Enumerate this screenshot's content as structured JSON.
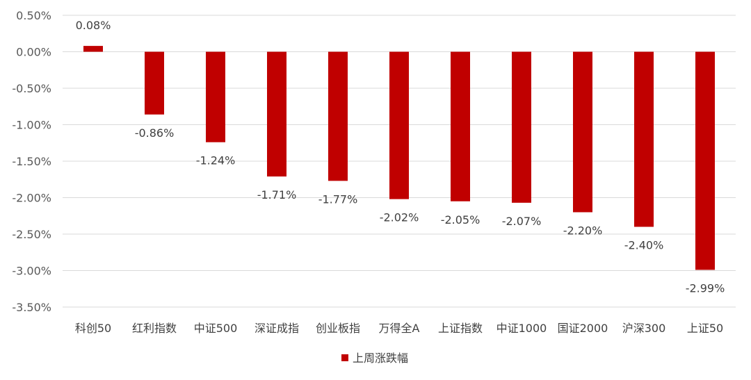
{
  "chart_data": {
    "type": "bar",
    "categories": [
      "科创50",
      "红利指数",
      "中证500",
      "深证成指",
      "创业板指",
      "万得全A",
      "上证指数",
      "中证1000",
      "国证2000",
      "沪深300",
      "上证50"
    ],
    "series": [
      {
        "name": "上周涨跌幅",
        "values": [
          0.08,
          -0.86,
          -1.24,
          -1.71,
          -1.77,
          -2.02,
          -2.05,
          -2.07,
          -2.2,
          -2.4,
          -2.99
        ],
        "data_labels": [
          "0.08%",
          "-0.86%",
          "-1.24%",
          "-1.71%",
          "-1.77%",
          "-2.02%",
          "-2.05%",
          "-2.07%",
          "-2.20%",
          "-2.40%",
          "-2.99%"
        ],
        "color": "#c00000"
      }
    ],
    "y_ticks": [
      "0.50%",
      "0.00%",
      "-0.50%",
      "-1.00%",
      "-1.50%",
      "-2.00%",
      "-2.50%",
      "-3.00%",
      "-3.50%"
    ],
    "y_tick_values": [
      0.5,
      0.0,
      -0.5,
      -1.0,
      -1.5,
      -2.0,
      -2.5,
      -3.0,
      -3.5
    ],
    "ylim": [
      -3.5,
      0.5
    ],
    "grid": true,
    "legend": {
      "position": "bottom",
      "entries": [
        "上周涨跌幅"
      ]
    },
    "colors": {
      "bar": "#c00000",
      "grid": "#d9d9d9"
    }
  }
}
